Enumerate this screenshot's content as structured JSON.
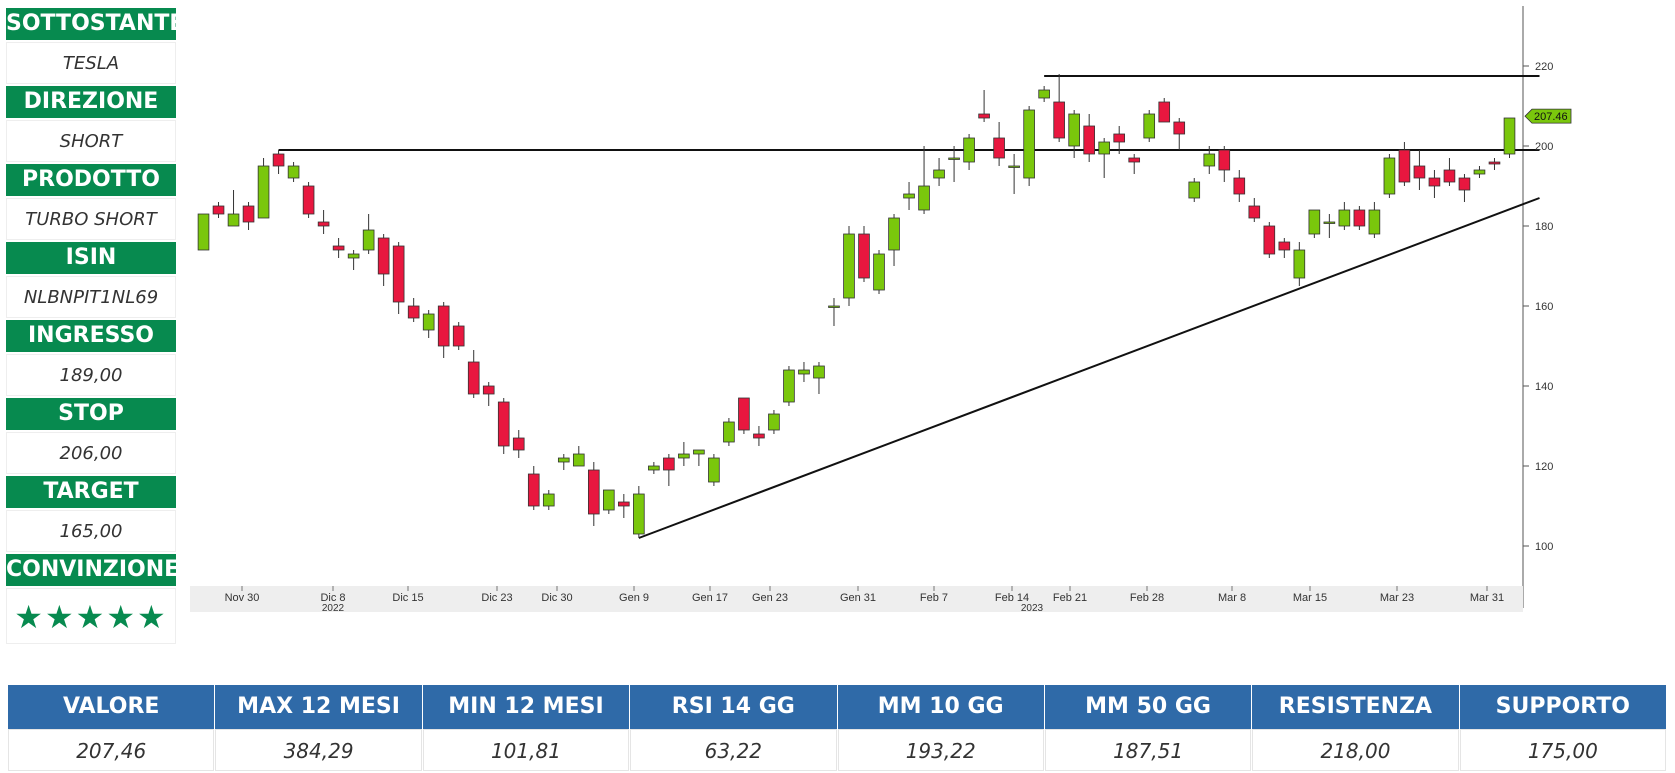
{
  "panel": {
    "underlying_label": "SOTTOSTANTE",
    "underlying": "TESLA",
    "direction_label": "DIREZIONE",
    "direction": "SHORT",
    "product_label": "PRODOTTO",
    "product": "TURBO SHORT",
    "isin_label": "ISIN",
    "isin": "NLBNPIT1NL69",
    "entry_label": "INGRESSO",
    "entry": "189,00",
    "stop_label": "STOP",
    "stop": "206,00",
    "target_label": "TARGET",
    "target": "165,00",
    "conviction_label": "CONVINZIONE",
    "conviction": "★★★★★",
    "conviction_stars": 5
  },
  "stats": {
    "headers": [
      "VALORE",
      "MAX 12 MESI",
      "MIN 12 MESI",
      "RSI 14 GG",
      "MM 10 GG",
      "MM 50 GG",
      "RESISTENZA",
      "SUPPORTO"
    ],
    "values": [
      "207,46",
      "384,29",
      "101,81",
      "63,22",
      "193,22",
      "187,51",
      "218,00",
      "175,00"
    ]
  },
  "colors": {
    "up": "#7ac70c",
    "down": "#e8173f",
    "panel_green": "#078a4f",
    "table_blue": "#2f6aa8"
  },
  "chart_data": {
    "type": "candlestick",
    "ylim": [
      90,
      235
    ],
    "yticks": [
      100,
      120,
      140,
      160,
      180,
      200,
      220
    ],
    "last_price_label": "207.46",
    "xticks": [
      "Nov 30",
      "Dic 8",
      "Dic 15",
      "Dic 23",
      "Dic 30",
      "Gen 9",
      "Gen 17",
      "Gen 23",
      "Gen 31",
      "Feb 7",
      "Feb 14",
      "Feb 21",
      "Feb 28",
      "Mar 8",
      "Mar 15",
      "Mar 23",
      "Mar 31"
    ],
    "year_labels": [
      "2022",
      "2023"
    ],
    "lines": [
      {
        "name": "resistance",
        "from": [
          5,
          199
        ],
        "to": [
          89,
          199
        ]
      },
      {
        "name": "resistance-high",
        "from": [
          56,
          217.5
        ],
        "to": [
          89,
          217.5
        ]
      },
      {
        "name": "support-trend",
        "from": [
          29,
          102
        ],
        "to": [
          89,
          187
        ]
      }
    ],
    "candles": [
      {
        "o": 174,
        "h": 183,
        "l": 174,
        "c": 183
      },
      {
        "o": 185,
        "h": 186,
        "l": 182,
        "c": 183
      },
      {
        "o": 180,
        "h": 189,
        "l": 180,
        "c": 183
      },
      {
        "o": 185,
        "h": 186,
        "l": 179,
        "c": 181
      },
      {
        "o": 182,
        "h": 197,
        "l": 182,
        "c": 195
      },
      {
        "o": 198,
        "h": 199,
        "l": 193,
        "c": 195
      },
      {
        "o": 192,
        "h": 196,
        "l": 191,
        "c": 195
      },
      {
        "o": 190,
        "h": 191,
        "l": 182,
        "c": 183
      },
      {
        "o": 181,
        "h": 184,
        "l": 178,
        "c": 180
      },
      {
        "o": 175,
        "h": 177,
        "l": 172,
        "c": 174
      },
      {
        "o": 172,
        "h": 174,
        "l": 169,
        "c": 173
      },
      {
        "o": 174,
        "h": 183,
        "l": 173,
        "c": 179
      },
      {
        "o": 177,
        "h": 178,
        "l": 165,
        "c": 168
      },
      {
        "o": 175,
        "h": 176,
        "l": 158,
        "c": 161
      },
      {
        "o": 160,
        "h": 162,
        "l": 156,
        "c": 157
      },
      {
        "o": 154,
        "h": 159,
        "l": 152,
        "c": 158
      },
      {
        "o": 160,
        "h": 161,
        "l": 147,
        "c": 150
      },
      {
        "o": 155,
        "h": 156,
        "l": 149,
        "c": 150
      },
      {
        "o": 146,
        "h": 149,
        "l": 137,
        "c": 138
      },
      {
        "o": 140,
        "h": 141,
        "l": 135,
        "c": 138
      },
      {
        "o": 136,
        "h": 137,
        "l": 123,
        "c": 125
      },
      {
        "o": 127,
        "h": 129,
        "l": 122,
        "c": 124
      },
      {
        "o": 118,
        "h": 120,
        "l": 109,
        "c": 110
      },
      {
        "o": 110,
        "h": 114,
        "l": 109,
        "c": 113
      },
      {
        "o": 121,
        "h": 123,
        "l": 119,
        "c": 122
      },
      {
        "o": 120,
        "h": 125,
        "l": 120,
        "c": 123
      },
      {
        "o": 119,
        "h": 121,
        "l": 105,
        "c": 108
      },
      {
        "o": 109,
        "h": 114,
        "l": 108,
        "c": 114
      },
      {
        "o": 111,
        "h": 113,
        "l": 107,
        "c": 110
      },
      {
        "o": 103,
        "h": 115,
        "l": 102,
        "c": 113
      },
      {
        "o": 119,
        "h": 121,
        "l": 118,
        "c": 120
      },
      {
        "o": 122,
        "h": 123,
        "l": 115,
        "c": 119
      },
      {
        "o": 122,
        "h": 126,
        "l": 120,
        "c": 123
      },
      {
        "o": 123,
        "h": 124,
        "l": 120,
        "c": 124
      },
      {
        "o": 116,
        "h": 123,
        "l": 115,
        "c": 122
      },
      {
        "o": 126,
        "h": 132,
        "l": 125,
        "c": 131
      },
      {
        "o": 137,
        "h": 137,
        "l": 128,
        "c": 129
      },
      {
        "o": 128,
        "h": 130,
        "l": 125,
        "c": 127
      },
      {
        "o": 129,
        "h": 134,
        "l": 128,
        "c": 133
      },
      {
        "o": 136,
        "h": 145,
        "l": 135,
        "c": 144
      },
      {
        "o": 143,
        "h": 146,
        "l": 141,
        "c": 144
      },
      {
        "o": 142,
        "h": 146,
        "l": 138,
        "c": 145
      },
      {
        "o": 160,
        "h": 162,
        "l": 155,
        "c": 160
      },
      {
        "o": 162,
        "h": 180,
        "l": 160,
        "c": 178
      },
      {
        "o": 178,
        "h": 180,
        "l": 166,
        "c": 167
      },
      {
        "o": 164,
        "h": 174,
        "l": 163,
        "c": 173
      },
      {
        "o": 174,
        "h": 183,
        "l": 170,
        "c": 182
      },
      {
        "o": 187,
        "h": 191,
        "l": 184,
        "c": 188
      },
      {
        "o": 184,
        "h": 200,
        "l": 183,
        "c": 190
      },
      {
        "o": 192,
        "h": 197,
        "l": 190,
        "c": 194
      },
      {
        "o": 197,
        "h": 200,
        "l": 191,
        "c": 197
      },
      {
        "o": 196,
        "h": 203,
        "l": 194,
        "c": 202
      },
      {
        "o": 208,
        "h": 214,
        "l": 206,
        "c": 207
      },
      {
        "o": 202,
        "h": 206,
        "l": 195,
        "c": 197
      },
      {
        "o": 195,
        "h": 198,
        "l": 188,
        "c": 195
      },
      {
        "o": 192,
        "h": 210,
        "l": 190,
        "c": 209
      },
      {
        "o": 212,
        "h": 215,
        "l": 211,
        "c": 214
      },
      {
        "o": 211,
        "h": 218,
        "l": 201,
        "c": 202
      },
      {
        "o": 200,
        "h": 209,
        "l": 197,
        "c": 208
      },
      {
        "o": 205,
        "h": 208,
        "l": 196,
        "c": 198
      },
      {
        "o": 198,
        "h": 202,
        "l": 192,
        "c": 201
      },
      {
        "o": 203,
        "h": 205,
        "l": 198,
        "c": 201
      },
      {
        "o": 197,
        "h": 198,
        "l": 193,
        "c": 196
      },
      {
        "o": 202,
        "h": 209,
        "l": 201,
        "c": 208
      },
      {
        "o": 211,
        "h": 212,
        "l": 206,
        "c": 206
      },
      {
        "o": 206,
        "h": 207,
        "l": 199,
        "c": 203
      },
      {
        "o": 187,
        "h": 192,
        "l": 186,
        "c": 191
      },
      {
        "o": 195,
        "h": 200,
        "l": 193,
        "c": 198
      },
      {
        "o": 199,
        "h": 200,
        "l": 191,
        "c": 194
      },
      {
        "o": 192,
        "h": 194,
        "l": 186,
        "c": 188
      },
      {
        "o": 185,
        "h": 187,
        "l": 181,
        "c": 182
      },
      {
        "o": 180,
        "h": 181,
        "l": 172,
        "c": 173
      },
      {
        "o": 176,
        "h": 177,
        "l": 172,
        "c": 174
      },
      {
        "o": 167,
        "h": 176,
        "l": 165,
        "c": 174
      },
      {
        "o": 178,
        "h": 184,
        "l": 177,
        "c": 184
      },
      {
        "o": 181,
        "h": 183,
        "l": 177,
        "c": 181
      },
      {
        "o": 180,
        "h": 186,
        "l": 179,
        "c": 184
      },
      {
        "o": 184,
        "h": 185,
        "l": 179,
        "c": 180
      },
      {
        "o": 178,
        "h": 186,
        "l": 177,
        "c": 184
      },
      {
        "o": 188,
        "h": 198,
        "l": 187,
        "c": 197
      },
      {
        "o": 199,
        "h": 201,
        "l": 190,
        "c": 191
      },
      {
        "o": 195,
        "h": 199,
        "l": 189,
        "c": 192
      },
      {
        "o": 192,
        "h": 194,
        "l": 187,
        "c": 190
      },
      {
        "o": 194,
        "h": 197,
        "l": 190,
        "c": 191
      },
      {
        "o": 192,
        "h": 193,
        "l": 186,
        "c": 189
      },
      {
        "o": 193,
        "h": 195,
        "l": 192,
        "c": 194
      },
      {
        "o": 196,
        "h": 197,
        "l": 194,
        "c": 195.5
      },
      {
        "o": 198,
        "h": 207,
        "l": 197,
        "c": 207
      }
    ]
  }
}
